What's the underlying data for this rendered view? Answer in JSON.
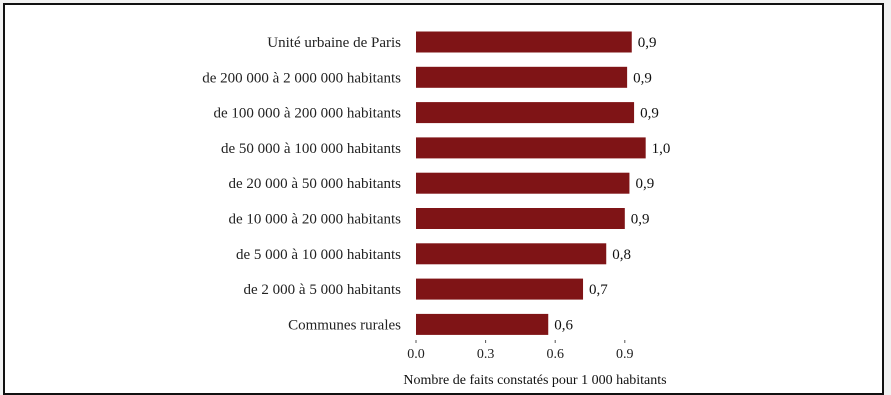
{
  "chart_data": {
    "type": "bar",
    "orientation": "horizontal",
    "categories": [
      "Unité urbaine de Paris",
      "de 200 000 à 2 000 000 habitants",
      "de 100 000 à 200 000 habitants",
      "de 50 000 à 100 000 habitants",
      "de 20 000 à 50 000 habitants",
      "de 10 000 à 20 000 habitants",
      "de 5 000 à 10 000 habitants",
      "de 2 000 à 5 000 habitants",
      "Communes rurales"
    ],
    "values": [
      0.93,
      0.91,
      0.94,
      0.99,
      0.92,
      0.9,
      0.82,
      0.72,
      0.57
    ],
    "value_labels": [
      "0,9",
      "0,9",
      "0,9",
      "1,0",
      "0,9",
      "0,9",
      "0,8",
      "0,7",
      "0,6"
    ],
    "xticks": [
      0.0,
      0.3,
      0.6,
      0.9
    ],
    "xtick_labels": [
      "0.0",
      "0.3",
      "0.6",
      "0.9"
    ],
    "xlim": [
      0,
      1.2
    ],
    "xlabel": "Nombre de faits constatés pour 1 000 habitants",
    "title": "",
    "grid": false,
    "bar_color": "#7f1416"
  }
}
